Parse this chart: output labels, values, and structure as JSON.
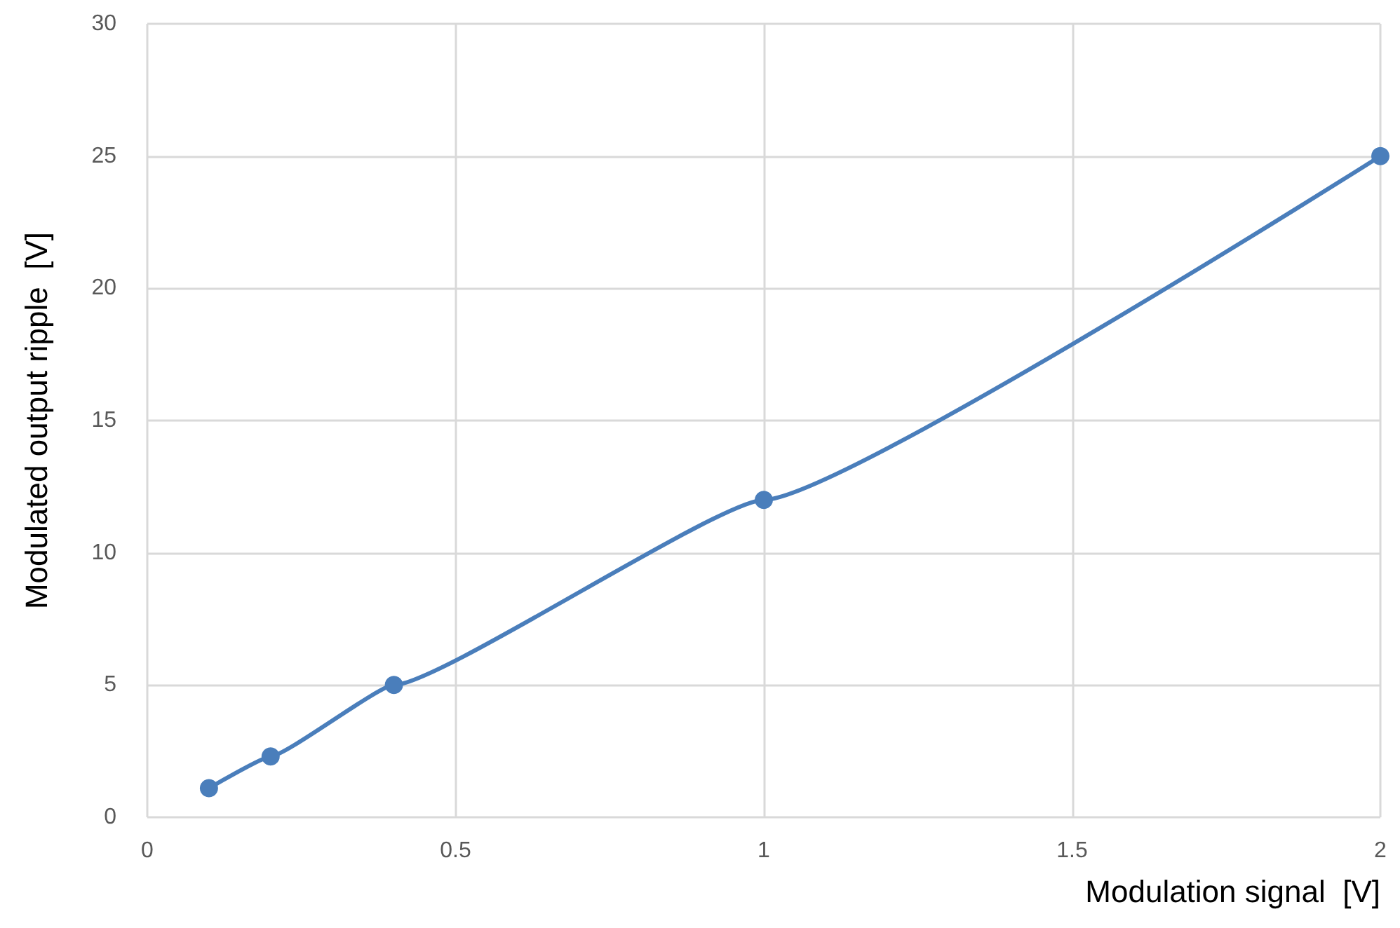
{
  "chart_data": {
    "type": "line",
    "xlabel": "Modulation signal  [V]",
    "ylabel": "Modulated output ripple  [V]",
    "x": [
      0.1,
      0.2,
      0.4,
      1,
      2
    ],
    "series": [
      {
        "color": "#4a7ebb",
        "values": [
          1.1,
          2.3,
          5,
          12,
          25
        ]
      }
    ],
    "xlim": [
      0,
      2
    ],
    "xticks": [
      0,
      0.5,
      1,
      1.5,
      2
    ],
    "ylim": [
      0,
      30
    ],
    "yticks": [
      0,
      5,
      10,
      15,
      20,
      25,
      30
    ],
    "grid": true,
    "marker": "circle",
    "line_style": "solid"
  }
}
